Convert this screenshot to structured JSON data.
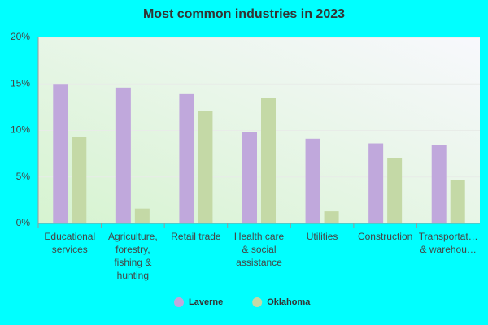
{
  "chart_data": {
    "type": "bar",
    "title": "Most common industries in 2023",
    "categories": [
      "Educational services",
      "Agriculture, forestry, fishing & hunting",
      "Retail trade",
      "Health care & social assistance",
      "Utilities",
      "Construction",
      "Transportat… & warehou…"
    ],
    "series": [
      {
        "name": "Laverne",
        "color": "#c0a8dc",
        "values": [
          15.0,
          14.6,
          13.9,
          9.8,
          9.1,
          8.6,
          8.4
        ]
      },
      {
        "name": "Oklahoma",
        "color": "#c4d9a6",
        "values": [
          9.3,
          1.6,
          12.1,
          13.5,
          1.3,
          7.0,
          4.7
        ]
      }
    ],
    "ylim": [
      0,
      20
    ],
    "yticks": [
      {
        "value": 0,
        "label": "0%"
      },
      {
        "value": 5,
        "label": "5%"
      },
      {
        "value": 10,
        "label": "10%"
      },
      {
        "value": 15,
        "label": "15%"
      },
      {
        "value": 20,
        "label": "20%"
      }
    ],
    "grid": true,
    "legend": "bottom"
  }
}
